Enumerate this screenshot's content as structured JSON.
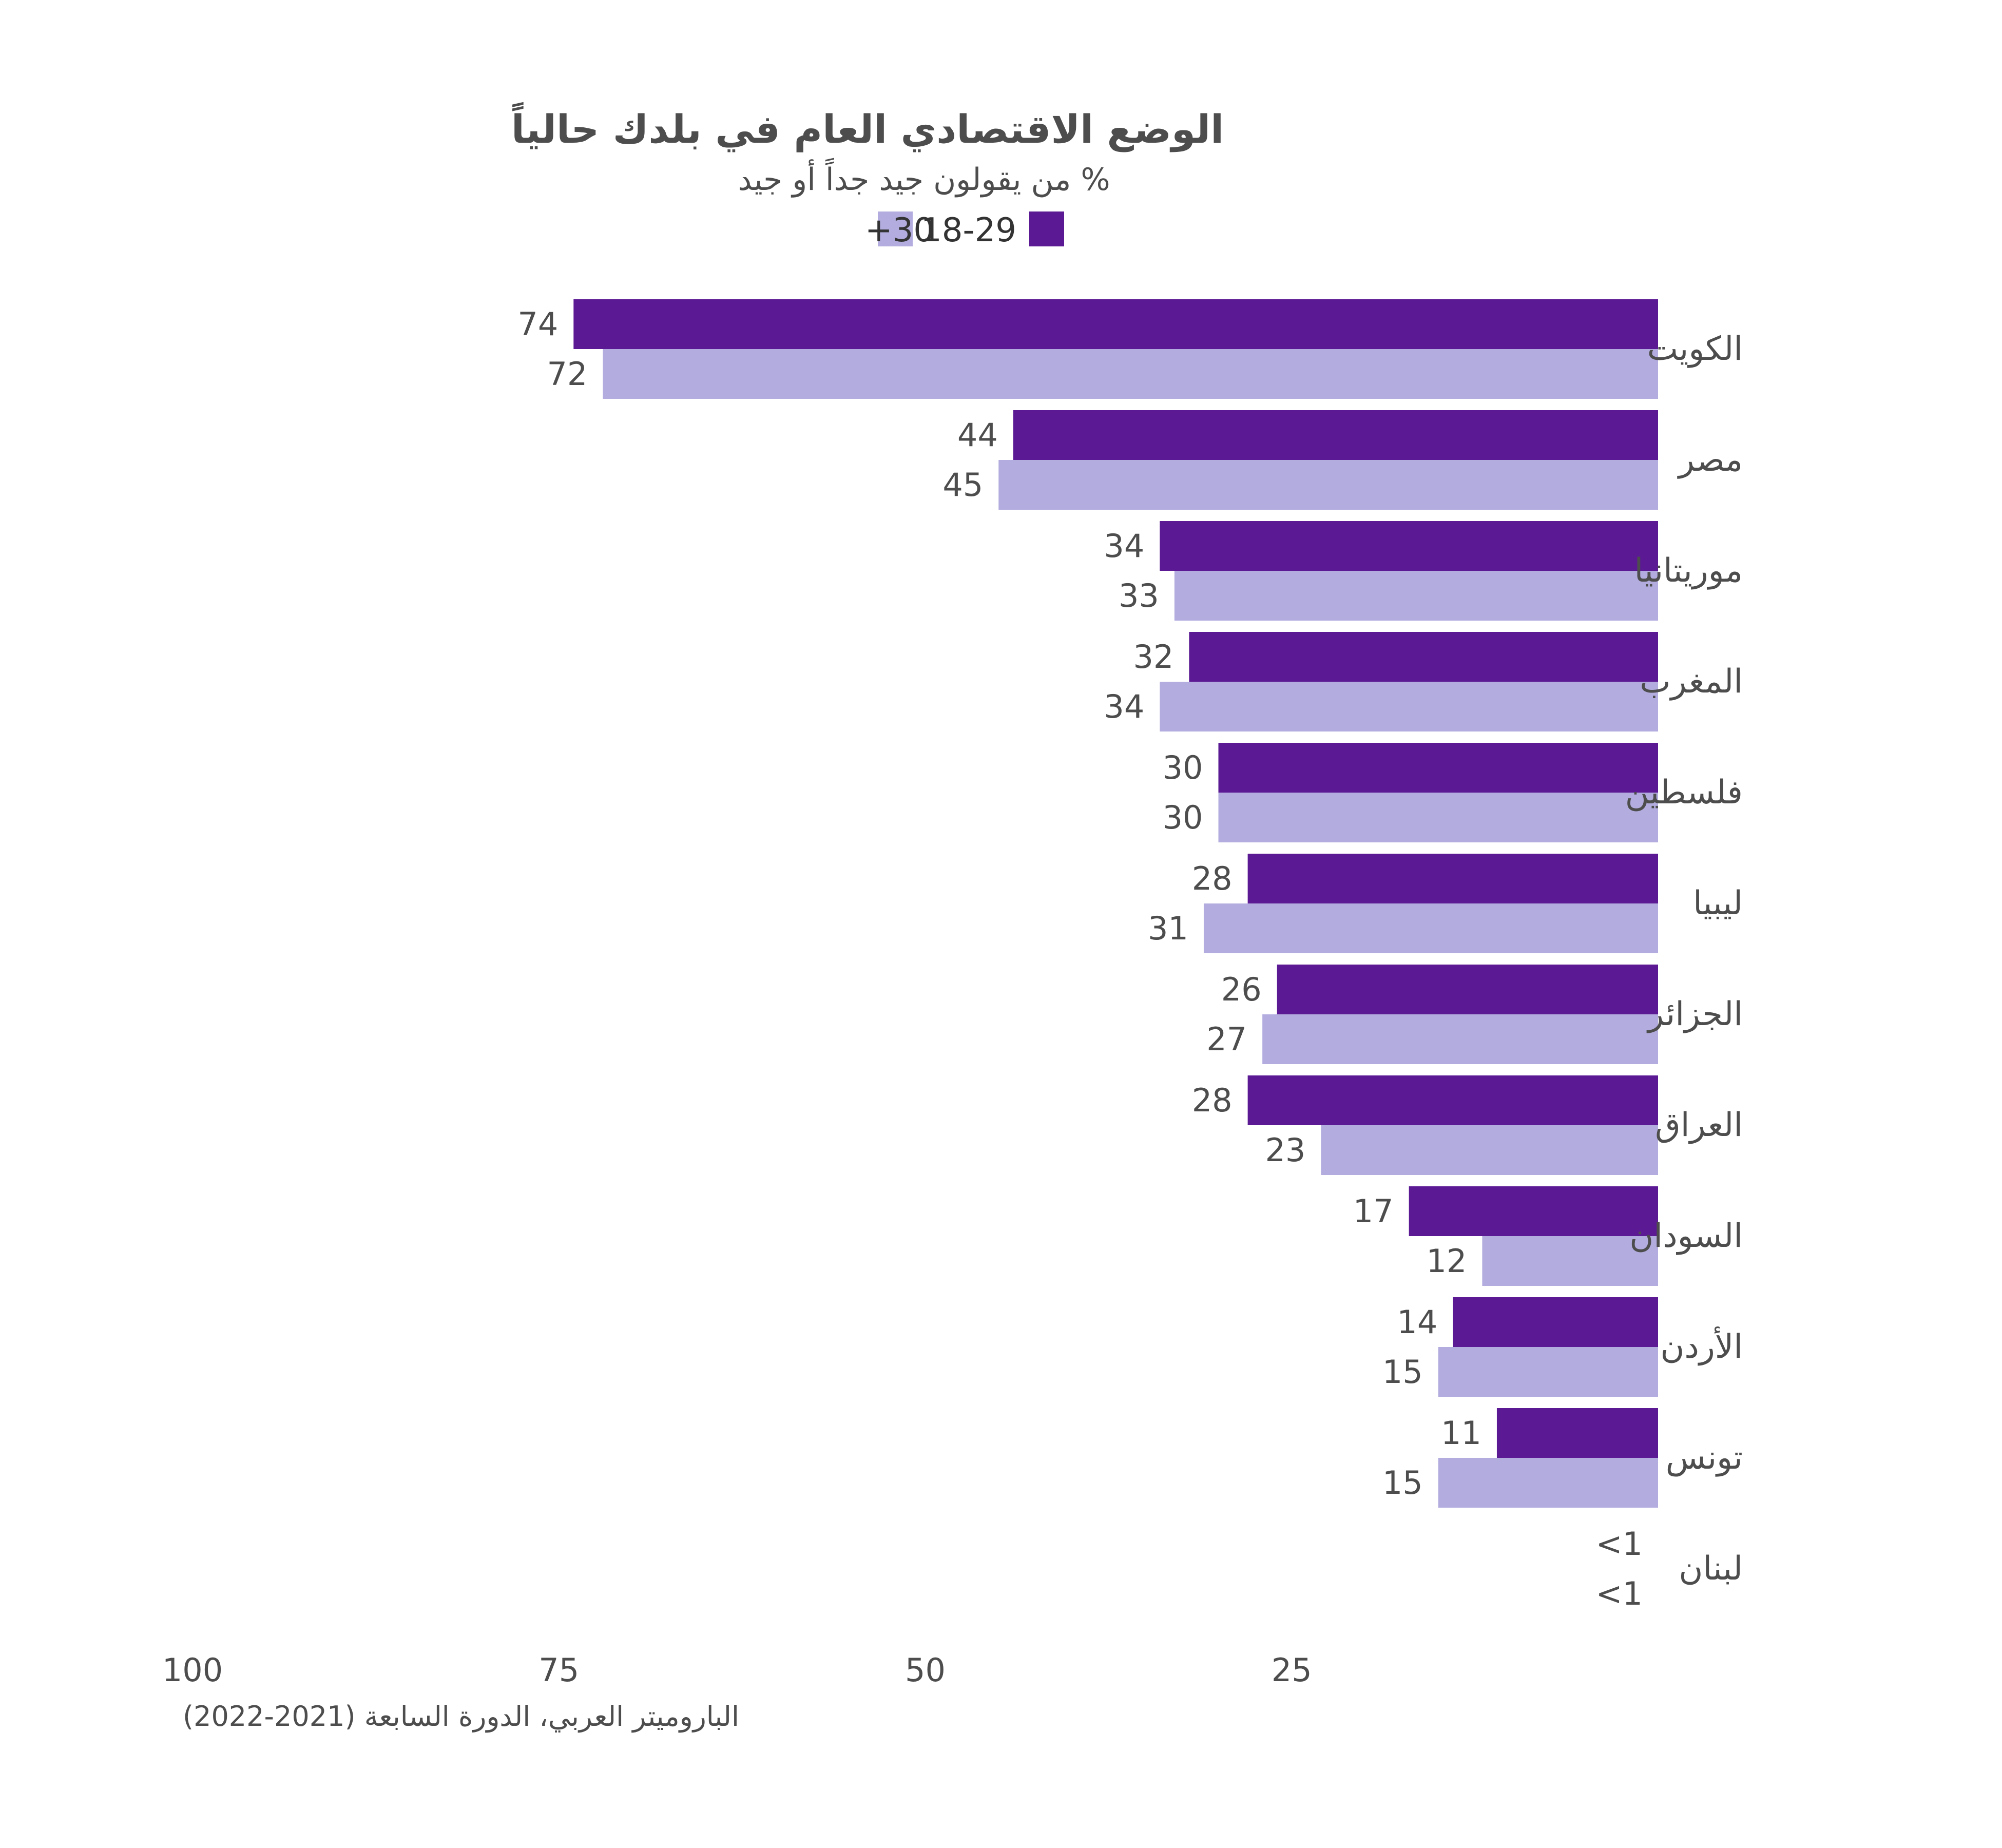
{
  "colors": {
    "young": "#5b1a94",
    "older": "#b3addf",
    "text": "#4d4d4d"
  },
  "chart_data": {
    "type": "bar",
    "orientation": "horizontal",
    "direction": "right-to-left",
    "title": "الوضع الاقتصادي العام في بلدك حالياً",
    "subtitle": "% من يقولون جيد جداً أو جيد",
    "source": "الباروميتر العربي، الدورة السابعة (2021-2022)",
    "categories": [
      "الكويت",
      "مصر",
      "موريتانيا",
      "المغرب",
      "فلسطين",
      "ليبيا",
      "الجزائر",
      "العراق",
      "السودان",
      "الأردن",
      "تونس",
      "لبنان"
    ],
    "series": [
      {
        "name": "18-29",
        "color": "#5b1a94",
        "values": [
          74,
          44,
          34,
          32,
          30,
          28,
          26,
          28,
          17,
          14,
          11,
          0
        ],
        "labels": [
          "74",
          "44",
          "34",
          "32",
          "30",
          "28",
          "26",
          "28",
          "17",
          "14",
          "11",
          "<1"
        ]
      },
      {
        "name": "30+",
        "color": "#b3addf",
        "values": [
          72,
          45,
          33,
          34,
          30,
          31,
          27,
          23,
          12,
          15,
          15,
          0
        ],
        "labels": [
          "72",
          "45",
          "33",
          "34",
          "30",
          "31",
          "27",
          "23",
          "12",
          "15",
          "15",
          "<1"
        ]
      }
    ],
    "xlim": [
      0,
      100
    ],
    "xticks": [
      100,
      75,
      50,
      25
    ],
    "xtick_labels": [
      "100",
      "75",
      "50",
      "25"
    ],
    "legend_position": "top",
    "grid": false
  }
}
